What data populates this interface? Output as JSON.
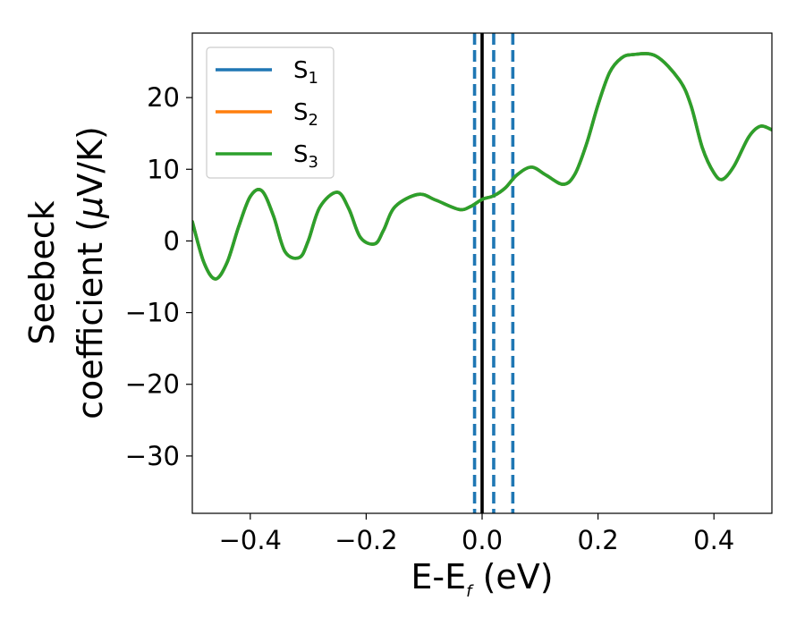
{
  "chart_data": {
    "type": "line",
    "xlabel": {
      "main": "E-E",
      "sub": "f",
      "tail": " (eV)"
    },
    "ylabel": {
      "line1": "Seebeck",
      "line2_pre": "coefficient  (",
      "mu": "μ",
      "line2_post": "V/K)"
    },
    "xlim": [
      -0.5,
      0.5
    ],
    "ylim": [
      -38,
      29
    ],
    "xticks": [
      -0.4,
      -0.2,
      0.0,
      0.2,
      0.4
    ],
    "xtick_labels": [
      "−0.4",
      "−0.2",
      "0.0",
      "0.2",
      "0.4"
    ],
    "yticks": [
      20,
      10,
      0,
      -10,
      -20,
      -30
    ],
    "ytick_labels": [
      "20",
      "10",
      "0",
      "−10",
      "−20",
      "−30"
    ],
    "legend_position": "top-left",
    "grid": false,
    "series": [
      {
        "name": "S",
        "sub": "1",
        "color": "#1f77b4"
      },
      {
        "name": "S",
        "sub": "2",
        "color": "#ff7f0e"
      },
      {
        "name": "S",
        "sub": "3",
        "color": "#2ca02c"
      }
    ],
    "curve": {
      "x": [
        -0.5,
        -0.48,
        -0.46,
        -0.44,
        -0.42,
        -0.4,
        -0.38,
        -0.36,
        -0.34,
        -0.315,
        -0.3,
        -0.28,
        -0.25,
        -0.23,
        -0.21,
        -0.185,
        -0.17,
        -0.15,
        -0.11,
        -0.08,
        -0.04,
        -0.02,
        0.0,
        0.02,
        0.04,
        0.06,
        0.085,
        0.11,
        0.14,
        0.16,
        0.18,
        0.2,
        0.22,
        0.24,
        0.26,
        0.3,
        0.34,
        0.36,
        0.38,
        0.4,
        0.415,
        0.435,
        0.46,
        0.48,
        0.5
      ],
      "y": [
        2.7,
        -3.0,
        -5.3,
        -3.0,
        2.0,
        6.2,
        7.0,
        3.5,
        -1.5,
        -2.3,
        0.0,
        4.7,
        6.8,
        4.5,
        0.5,
        -0.4,
        1.5,
        4.8,
        6.5,
        5.7,
        4.4,
        4.8,
        5.8,
        6.3,
        7.4,
        9.2,
        10.3,
        9.2,
        7.9,
        9.3,
        13.5,
        19.0,
        23.5,
        25.5,
        26.0,
        25.8,
        22.5,
        19.0,
        13.0,
        9.5,
        8.6,
        10.5,
        14.5,
        16.0,
        15.5
      ]
    },
    "vlines": [
      {
        "x": -0.013,
        "style": "dashed",
        "color": "#1f77b4"
      },
      {
        "x": 0.02,
        "style": "dashed",
        "color": "#1f77b4"
      },
      {
        "x": 0.053,
        "style": "dashed",
        "color": "#1f77b4"
      },
      {
        "x": 0.0,
        "style": "solid",
        "color": "#000000"
      }
    ]
  }
}
